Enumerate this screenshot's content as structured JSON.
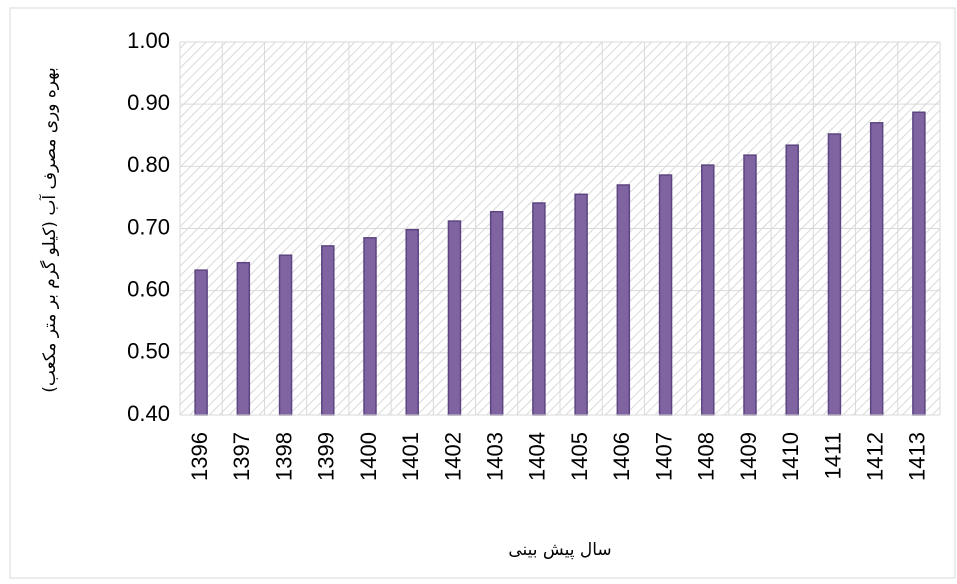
{
  "chart_data": {
    "type": "bar",
    "ylabel": "بهره وری مصرف آب (کیلو گرم بر متر مکعب)",
    "xlabel": "سال  پیش بینی",
    "categories": [
      "1396",
      "1397",
      "1398",
      "1399",
      "1400",
      "1401",
      "1402",
      "1403",
      "1404",
      "1405",
      "1406",
      "1407",
      "1408",
      "1409",
      "1410",
      "1411",
      "1412",
      "1413"
    ],
    "values": [
      0.633,
      0.645,
      0.657,
      0.672,
      0.685,
      0.698,
      0.712,
      0.727,
      0.741,
      0.755,
      0.77,
      0.786,
      0.802,
      0.818,
      0.834,
      0.852,
      0.87,
      0.887
    ],
    "color": "#8064a2",
    "ylim": [
      0.4,
      1.0
    ],
    "yticks": [
      {
        "value": 0.4,
        "label": "0.40"
      },
      {
        "value": 0.5,
        "label": "0.50"
      },
      {
        "value": 0.6,
        "label": "0.60"
      },
      {
        "value": 0.7,
        "label": "0.70"
      },
      {
        "value": 0.8,
        "label": "0.80"
      },
      {
        "value": 0.9,
        "label": "0.90"
      },
      {
        "value": 1.0,
        "label": "1.00"
      }
    ],
    "grid": true
  }
}
